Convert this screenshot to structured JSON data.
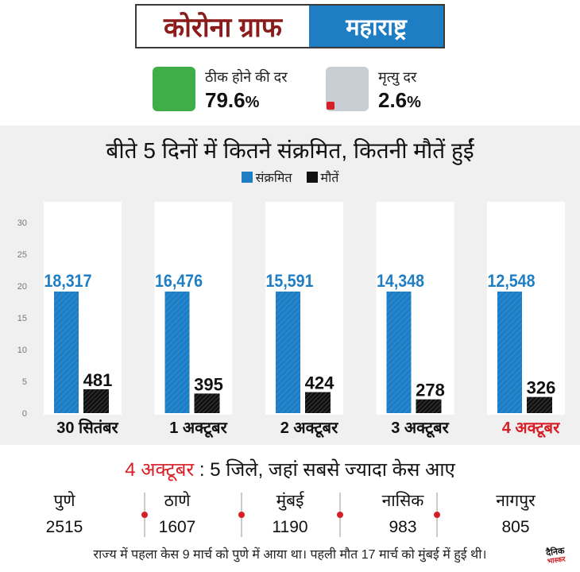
{
  "header": {
    "title_left": "कोरोना ग्राफ",
    "title_right": "महाराष्ट्र",
    "colors": {
      "left_text": "#8b1c1c",
      "right_bg": "#1f7dc4"
    }
  },
  "stats": [
    {
      "label": "ठीक होने की दर",
      "value": "79.6",
      "unit": "%",
      "box_color": "#3fae49"
    },
    {
      "label": "मृत्यु दर",
      "value": "2.6",
      "unit": "%",
      "box_color": "#c8ced3",
      "marker_color": "#d61f26"
    }
  ],
  "chart_data": {
    "type": "bar",
    "title": "बीते 5 दिनों में कितने संक्रमित, कितनी मौतें हुईं",
    "categories": [
      "30 सितंबर",
      "1 अक्टूबर",
      "2 अक्टूबर",
      "3 अक्टूबर",
      "4 अक्टूबर"
    ],
    "highlight_category_index": 4,
    "highlight_color": "#d61f26",
    "y_ticks": [
      "0",
      "5",
      "10",
      "15",
      "20",
      "25",
      "30"
    ],
    "ylim": [
      0,
      30
    ],
    "series": [
      {
        "name": "संक्रमित",
        "color": "#1f7dc4",
        "values": [
          18317,
          16476,
          15591,
          14348,
          12548
        ],
        "labels": [
          "18,317",
          "16,476",
          "15,591",
          "14,348",
          "12,548"
        ]
      },
      {
        "name": "मौतें",
        "color": "#111111",
        "values": [
          481,
          395,
          424,
          278,
          326
        ],
        "labels": [
          "481",
          "395",
          "424",
          "278",
          "326"
        ]
      }
    ],
    "legend_position": "top-center",
    "grid": false
  },
  "districts": {
    "heading_date": "4 अक्टूबर",
    "heading_sep": " : ",
    "heading_rest": "5 जिले, जहां सबसे ज्यादा केस आए",
    "items": [
      {
        "name": "पुणे",
        "count": "2515"
      },
      {
        "name": "ठाणे",
        "count": "1607"
      },
      {
        "name": "मुंबई",
        "count": "1190"
      },
      {
        "name": "नासिक",
        "count": "983"
      },
      {
        "name": "नागपुर",
        "count": "805"
      }
    ],
    "separator_color": "#d61f26"
  },
  "footer": {
    "text": "राज्य में पहला केस 9 मार्च को पुणे में आया था। पहली मौत 17 मार्च को मुंबई में हुई थी।",
    "logo_top": "दैनिक",
    "logo_bottom": "भास्कर"
  }
}
